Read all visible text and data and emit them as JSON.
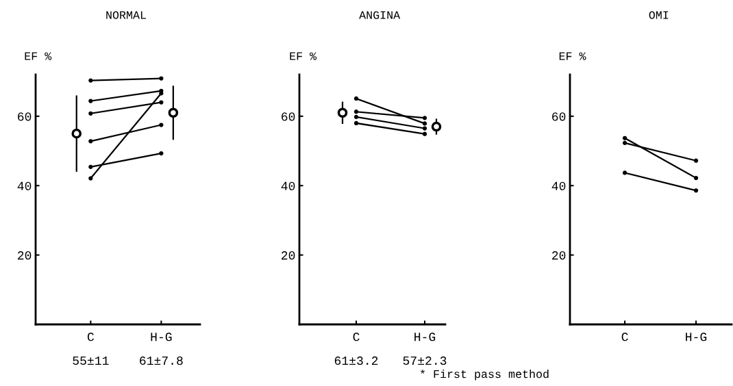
{
  "chart_data": [
    {
      "type": "line",
      "title": "NORMAL",
      "ylabel": "EF %",
      "categories": [
        "C",
        "H-G"
      ],
      "ylim": [
        0,
        72
      ],
      "yticks": [
        20,
        40,
        60
      ],
      "marker": "circle",
      "line_style": "solid",
      "grid": false,
      "legend": false,
      "series": [
        {
          "color": "#000000",
          "values": [
            70.3,
            70.9
          ]
        },
        {
          "color": "#000000",
          "values": [
            64.4,
            67.3
          ]
        },
        {
          "color": "#000000",
          "values": [
            60.8,
            64.0
          ]
        },
        {
          "color": "#000000",
          "values": [
            52.8,
            57.5
          ]
        },
        {
          "color": "#000000",
          "values": [
            45.4,
            49.3
          ]
        },
        {
          "color": "#000000",
          "values": [
            42.1,
            66.6
          ]
        },
        {
          "type": "scatter",
          "color": "#000000",
          "x": [
            "C",
            "H-G"
          ],
          "values": [
            55,
            61
          ],
          "errors": [
            11,
            7.8
          ]
        }
      ],
      "annotations": [
        "55±11",
        "61±7.8"
      ]
    },
    {
      "type": "line",
      "title": "ANGINA",
      "ylabel": "EF %",
      "categories": [
        "C",
        "H-G"
      ],
      "ylim": [
        0,
        72
      ],
      "yticks": [
        20,
        40,
        60
      ],
      "marker": "circle",
      "line_style": "solid",
      "grid": false,
      "legend": false,
      "series": [
        {
          "color": "#000000",
          "values": [
            65.1,
            57.9
          ]
        },
        {
          "color": "#000000",
          "values": [
            61.3,
            59.5
          ]
        },
        {
          "color": "#000000",
          "values": [
            59.8,
            56.5
          ]
        },
        {
          "color": "#000000",
          "values": [
            58.0,
            54.9
          ]
        },
        {
          "type": "scatter",
          "color": "#000000",
          "x": [
            "C",
            "H-G"
          ],
          "values": [
            61,
            57
          ],
          "errors": [
            3.2,
            2.3
          ]
        }
      ],
      "annotations": [
        "61±3.2",
        "57±2.3"
      ]
    },
    {
      "type": "line",
      "title": "OMI",
      "ylabel": "EF %",
      "categories": [
        "C",
        "H-G"
      ],
      "ylim": [
        0,
        72
      ],
      "yticks": [
        20,
        40,
        60
      ],
      "marker": "circle",
      "line_style": "solid",
      "grid": false,
      "legend": false,
      "series": [
        {
          "color": "#000000",
          "values": [
            53.7,
            42.2
          ]
        },
        {
          "color": "#000000",
          "values": [
            52.3,
            47.2
          ]
        },
        {
          "color": "#000000",
          "values": [
            43.7,
            38.6
          ]
        }
      ],
      "annotations": [
        "* First pass method"
      ]
    }
  ]
}
